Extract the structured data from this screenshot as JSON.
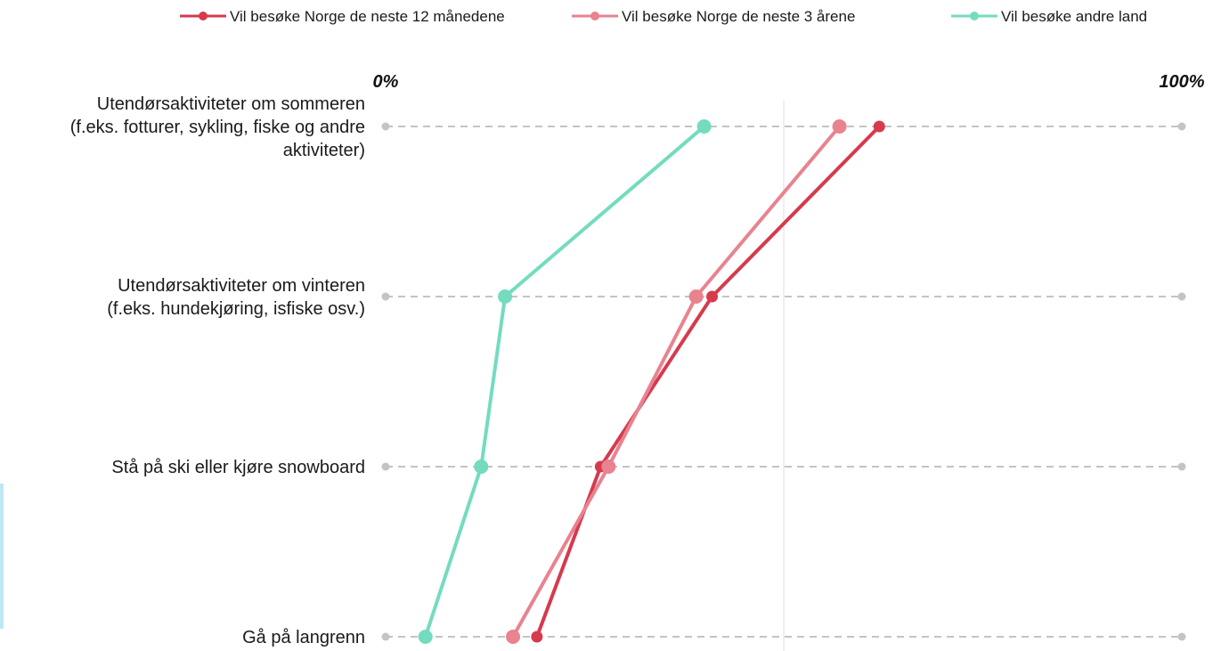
{
  "chart_data": {
    "type": "line",
    "orientation": "horizontal",
    "x_axis": {
      "min": 0,
      "max": 100,
      "min_label": "0%",
      "max_label": "100%"
    },
    "categories": [
      [
        "Utendørsaktiviteter om sommeren",
        "(f.eks. fotturer, sykling, fiske og andre",
        "aktiviteter)"
      ],
      [
        "Utendørsaktiviteter om vinteren",
        "(f.eks. hundekjøring, isfiske osv.)"
      ],
      [
        "Stå på ski eller kjøre snowboard"
      ],
      [
        "Gå på langrenn"
      ]
    ],
    "series": [
      {
        "name": "Vil besøke Norge de neste 12 månedene",
        "color": "#d63a4d",
        "marker_size": "small",
        "values": [
          62,
          41,
          27,
          19
        ]
      },
      {
        "name": "Vil besøke Norge de neste 3 årene",
        "color": "#e8838f",
        "marker_size": "large",
        "values": [
          57,
          39,
          28,
          16
        ]
      },
      {
        "name": "Vil besøke andre land",
        "color": "#74dbbf",
        "marker_size": "large",
        "values": [
          40,
          15,
          12,
          5
        ]
      }
    ],
    "reference_line": 50,
    "grid": "dashed-horizontal",
    "legend_position": "top-right"
  }
}
